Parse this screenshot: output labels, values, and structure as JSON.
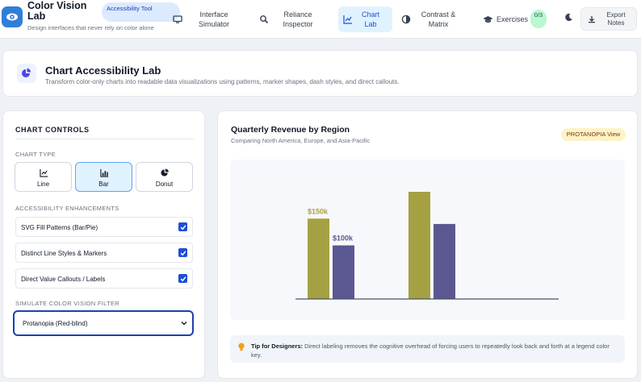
{
  "app": {
    "title": "Color Vision Lab",
    "subtitle": "Design interfaces that never rely on color alone",
    "badge": "Accessibility Tool"
  },
  "nav": [
    {
      "label": "Interface Simulator",
      "icon": "monitor-icon"
    },
    {
      "label": "Reliance Inspector",
      "icon": "search-icon"
    },
    {
      "label": "Chart Lab",
      "icon": "line-chart-icon",
      "active": true
    },
    {
      "label": "Contrast & Matrix",
      "icon": "contrast-icon"
    },
    {
      "label": "Exercises",
      "icon": "graduation-cap-icon"
    }
  ],
  "exercises_badge": "0/3",
  "export_label": "Export Notes",
  "banner": {
    "title": "Chart Accessibility Lab",
    "subtitle": "Transform color-only charts into readable data visualizations using patterns, marker shapes, dash styles, and direct callouts."
  },
  "controls": {
    "heading": "CHART CONTROLS",
    "chart_type_label": "CHART TYPE",
    "chart_types": [
      {
        "label": "Line",
        "icon": "line-chart-icon"
      },
      {
        "label": "Bar",
        "icon": "bar-chart-icon",
        "selected": true
      },
      {
        "label": "Donut",
        "icon": "pie-chart-icon"
      }
    ],
    "enhancements_label": "ACCESSIBILITY ENHANCEMENTS",
    "enhancements": [
      {
        "label": "SVG Fill Patterns (Bar/Pie)",
        "checked": true
      },
      {
        "label": "Distinct Line Styles & Markers",
        "checked": true
      },
      {
        "label": "Direct Value Callouts / Labels",
        "checked": true
      }
    ],
    "filter_label": "SIMULATE COLOR VISION FILTER",
    "filter_value": "Protanopia (Red-blind)"
  },
  "chart": {
    "title": "Quarterly Revenue by Region",
    "subtitle": "Comparing North America, Europe, and Asia-Pacific",
    "view_badge": "PROTANOPIA View",
    "tip_bold": "Tip for Designers:",
    "tip_text": " Direct labeling removes the cognitive overhead of forcing users to repeatedly look back and forth at a legend color key."
  },
  "chart_data": {
    "type": "bar",
    "categories": [
      "",
      ""
    ],
    "series": [
      {
        "values": [
          150,
          200
        ],
        "labels": [
          "$150k",
          ""
        ],
        "color": "#a5a143"
      },
      {
        "values": [
          100,
          140
        ],
        "labels": [
          "$100k",
          ""
        ],
        "color": "#5b5790"
      }
    ],
    "ylim": [
      0,
      200
    ]
  }
}
